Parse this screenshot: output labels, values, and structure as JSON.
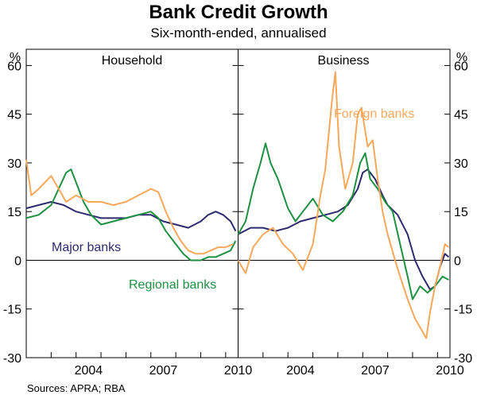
{
  "title": "Bank Credit Growth",
  "subtitle": "Six-month-ended, annualised",
  "source": "Sources: APRA; RBA",
  "chart_data": {
    "type": "line",
    "unit_left": "%",
    "unit_right": "%",
    "ylim": [
      -30,
      65
    ],
    "y_ticks": [
      "60",
      "45",
      "30",
      "15",
      "0",
      "-15",
      "-30"
    ],
    "grid": false,
    "colors": {
      "major": "#2e2a6e",
      "regional": "#1e9141",
      "foreign": "#f7a85a",
      "axis": "#000000"
    },
    "panels": [
      {
        "name": "Household",
        "xlim": [
          2002.0,
          2010.5
        ],
        "x_ticks": [
          "2004",
          "2007",
          "2010"
        ],
        "series": [
          {
            "name": "Major banks",
            "color": "major",
            "points": [
              [
                2002.0,
                16
              ],
              [
                2002.5,
                17
              ],
              [
                2003.0,
                18
              ],
              [
                2003.5,
                17
              ],
              [
                2004.0,
                15
              ],
              [
                2004.5,
                14
              ],
              [
                2005.0,
                13
              ],
              [
                2005.5,
                13
              ],
              [
                2006.0,
                13
              ],
              [
                2006.5,
                14
              ],
              [
                2007.0,
                14
              ],
              [
                2007.5,
                12
              ],
              [
                2008.0,
                11
              ],
              [
                2008.5,
                10
              ],
              [
                2009.0,
                12
              ],
              [
                2009.3,
                14
              ],
              [
                2009.6,
                15
              ],
              [
                2009.9,
                14
              ],
              [
                2010.2,
                12
              ],
              [
                2010.4,
                9
              ]
            ]
          },
          {
            "name": "Regional banks",
            "color": "regional",
            "points": [
              [
                2002.0,
                13
              ],
              [
                2002.5,
                14
              ],
              [
                2003.0,
                17
              ],
              [
                2003.3,
                22
              ],
              [
                2003.6,
                27
              ],
              [
                2003.8,
                28
              ],
              [
                2004.0,
                24
              ],
              [
                2004.3,
                18
              ],
              [
                2004.6,
                14
              ],
              [
                2005.0,
                11
              ],
              [
                2005.5,
                12
              ],
              [
                2006.0,
                13
              ],
              [
                2006.5,
                14
              ],
              [
                2007.0,
                15
              ],
              [
                2007.3,
                13
              ],
              [
                2007.6,
                9
              ],
              [
                2008.0,
                5
              ],
              [
                2008.3,
                2
              ],
              [
                2008.6,
                0
              ],
              [
                2009.0,
                0
              ],
              [
                2009.3,
                1
              ],
              [
                2009.6,
                1
              ],
              [
                2009.9,
                2
              ],
              [
                2010.2,
                3
              ],
              [
                2010.4,
                6
              ]
            ]
          },
          {
            "name": "",
            "color": "foreign",
            "points": [
              [
                2002.0,
                31
              ],
              [
                2002.2,
                20
              ],
              [
                2002.5,
                22
              ],
              [
                2003.0,
                26
              ],
              [
                2003.3,
                22
              ],
              [
                2003.6,
                18
              ],
              [
                2004.0,
                20
              ],
              [
                2004.5,
                18
              ],
              [
                2005.0,
                18
              ],
              [
                2005.5,
                17
              ],
              [
                2006.0,
                18
              ],
              [
                2006.5,
                20
              ],
              [
                2007.0,
                22
              ],
              [
                2007.3,
                21
              ],
              [
                2007.6,
                15
              ],
              [
                2007.9,
                10
              ],
              [
                2008.2,
                6
              ],
              [
                2008.5,
                3
              ],
              [
                2008.8,
                2
              ],
              [
                2009.1,
                2
              ],
              [
                2009.4,
                3
              ],
              [
                2009.7,
                4
              ],
              [
                2010.0,
                4
              ],
              [
                2010.3,
                5
              ]
            ]
          }
        ]
      },
      {
        "name": "Business",
        "xlim": [
          2002.0,
          2010.5
        ],
        "x_ticks": [
          "2004",
          "2007",
          "2010"
        ],
        "series": [
          {
            "name": "",
            "color": "major",
            "points": [
              [
                2002.0,
                8
              ],
              [
                2002.5,
                10
              ],
              [
                2003.0,
                10
              ],
              [
                2003.5,
                9
              ],
              [
                2004.0,
                10
              ],
              [
                2004.5,
                12
              ],
              [
                2005.0,
                13
              ],
              [
                2005.5,
                14
              ],
              [
                2006.0,
                15
              ],
              [
                2006.4,
                17
              ],
              [
                2006.8,
                22
              ],
              [
                2007.0,
                27
              ],
              [
                2007.2,
                28
              ],
              [
                2007.5,
                25
              ],
              [
                2007.8,
                20
              ],
              [
                2008.0,
                17
              ],
              [
                2008.4,
                14
              ],
              [
                2008.8,
                8
              ],
              [
                2009.1,
                0
              ],
              [
                2009.4,
                -5
              ],
              [
                2009.7,
                -9
              ],
              [
                2009.9,
                -8
              ],
              [
                2010.1,
                -2
              ],
              [
                2010.3,
                2
              ],
              [
                2010.45,
                1
              ]
            ]
          },
          {
            "name": "",
            "color": "regional",
            "points": [
              [
                2002.0,
                8
              ],
              [
                2002.3,
                12
              ],
              [
                2002.6,
                22
              ],
              [
                2002.9,
                30
              ],
              [
                2003.1,
                36
              ],
              [
                2003.3,
                30
              ],
              [
                2003.6,
                25
              ],
              [
                2004.0,
                16
              ],
              [
                2004.3,
                12
              ],
              [
                2004.6,
                15
              ],
              [
                2005.0,
                19
              ],
              [
                2005.4,
                14
              ],
              [
                2005.8,
                12
              ],
              [
                2006.2,
                15
              ],
              [
                2006.6,
                20
              ],
              [
                2006.9,
                30
              ],
              [
                2007.1,
                33
              ],
              [
                2007.3,
                25
              ],
              [
                2007.6,
                22
              ],
              [
                2007.9,
                18
              ],
              [
                2008.2,
                15
              ],
              [
                2008.5,
                5
              ],
              [
                2008.8,
                -5
              ],
              [
                2009.0,
                -12
              ],
              [
                2009.3,
                -8
              ],
              [
                2009.6,
                -10
              ],
              [
                2009.9,
                -8
              ],
              [
                2010.2,
                -5
              ],
              [
                2010.45,
                -6
              ]
            ]
          },
          {
            "name": "Foreign banks",
            "color": "foreign",
            "points": [
              [
                2002.0,
                0
              ],
              [
                2002.3,
                -4
              ],
              [
                2002.6,
                4
              ],
              [
                2003.0,
                8
              ],
              [
                2003.4,
                10
              ],
              [
                2003.8,
                5
              ],
              [
                2004.2,
                2
              ],
              [
                2004.6,
                -3
              ],
              [
                2005.0,
                5
              ],
              [
                2005.3,
                20
              ],
              [
                2005.5,
                28
              ],
              [
                2005.75,
                48
              ],
              [
                2005.9,
                58
              ],
              [
                2006.05,
                35
              ],
              [
                2006.3,
                22
              ],
              [
                2006.6,
                30
              ],
              [
                2006.8,
                45
              ],
              [
                2006.95,
                47
              ],
              [
                2007.2,
                35
              ],
              [
                2007.4,
                37
              ],
              [
                2007.6,
                25
              ],
              [
                2007.8,
                15
              ],
              [
                2008.0,
                8
              ],
              [
                2008.3,
                0
              ],
              [
                2008.5,
                -5
              ],
              [
                2008.8,
                -12
              ],
              [
                2009.1,
                -18
              ],
              [
                2009.4,
                -22
              ],
              [
                2009.55,
                -24
              ],
              [
                2009.7,
                -16
              ],
              [
                2009.9,
                -8
              ],
              [
                2010.1,
                -2
              ],
              [
                2010.3,
                5
              ],
              [
                2010.45,
                4
              ]
            ]
          }
        ]
      }
    ],
    "annotations": [
      "Major banks",
      "Regional banks",
      "Foreign banks"
    ]
  }
}
